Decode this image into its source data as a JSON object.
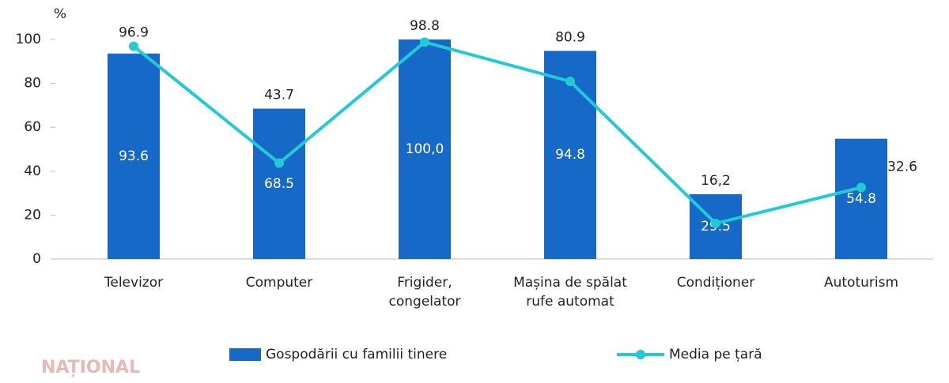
{
  "chart_data": {
    "type": "bar-line",
    "y_unit": "%",
    "categories": [
      [
        "Televizor"
      ],
      [
        "Computer"
      ],
      [
        "Frigider,",
        "congelator"
      ],
      [
        "Mașina de spălat",
        "rufe automat"
      ],
      [
        "Condiționer"
      ],
      [
        "Autoturism"
      ]
    ],
    "series": [
      {
        "name": "Gospodării cu familii tinere",
        "type": "bar",
        "color": "#1769c7",
        "values": [
          93.6,
          68.5,
          100.0,
          94.8,
          29.5,
          54.8
        ],
        "value_labels": [
          "93.6",
          "68.5",
          "100,0",
          "94.8",
          "29.5",
          "54.8"
        ]
      },
      {
        "name": "Media pe țară",
        "type": "line",
        "color": "#22c9d6",
        "values": [
          96.9,
          43.7,
          98.8,
          80.9,
          16.2,
          32.6
        ],
        "value_labels": [
          "96.9",
          "43.7",
          "98.8",
          "80.9",
          "16,2",
          "32.6"
        ]
      }
    ],
    "ylim": [
      0,
      100
    ],
    "yticks": [
      0,
      20,
      40,
      60,
      80,
      100
    ],
    "watermark": "NAȚIONAL"
  }
}
